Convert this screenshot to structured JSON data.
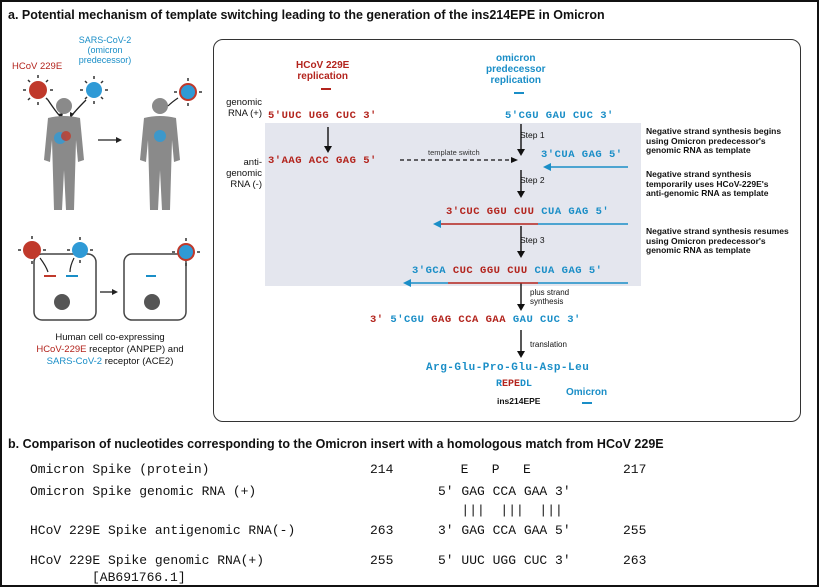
{
  "title_a": "a. Potential mechanism of template switching leading to the generation of the ins214EPE in Omicron",
  "title_b": "b. Comparison of nucleotides corresponding to the Omicron insert with a homologous match from HCoV 229E",
  "left": {
    "sars_label": "SARS-CoV-2\n(omicron\npredecessor)",
    "hcov_label": "HCoV 229E",
    "cell_caption_1": "Human cell co-expressing",
    "cell_caption_2a": "HCoV-229E",
    "cell_caption_2b": " receptor (ANPEP) and",
    "cell_caption_3a": "SARS-CoV-2",
    "cell_caption_3b": " receptor (ACE2)"
  },
  "panel": {
    "hcov_header": "HCoV 229E\nreplication",
    "omicron_header": "omicron\npredecessor\nreplication",
    "genomic_label": "genomic\nRNA (+)",
    "antigenomic_label": "anti-\ngenomic\nRNA (-)",
    "hcov_genomic": "5'UUC UGG CUC 3'",
    "hcov_anti": "3'AAG ACC GAG 5'",
    "omi_genomic": "5'CGU GAU CUC 3'",
    "step1": "Step 1",
    "step2": "Step 2",
    "step3": "Step 3",
    "template_switch": "template switch",
    "seq_step1": "3'CUA GAG 5'",
    "seq_step2_red": "3'CUC GGU CUU",
    "seq_step2_blue": " CUA GAG 5'",
    "seq_step3_blue1": "3'GCA",
    "seq_step3_red": " CUC GGU CUU",
    "seq_step3_blue2": " CUA GAG 5'",
    "plus_strand": "plus strand\nsynthesis",
    "final_prefix": "3'  ",
    "final_blue1": "5'CGU",
    "final_red": " GAG CCA GAA",
    "final_blue2": " GAU CUC 3'",
    "translation": "translation",
    "protein": "Arg-Glu-Pro-Glu-Asp-Leu",
    "repedl_r": "R",
    "repedl_epe": "EPE",
    "repedl_dl": "DL",
    "ins_label": "ins214EPE",
    "omicron_label": "Omicron",
    "note1": "Negative strand synthesis begins\nusing Omicron predecessor's\ngenomic RNA as template",
    "note2": "Negative strand synthesis\ntemporarily uses HCoV-229E's\nanti-genomic RNA as template",
    "note3": "Negative strand synthesis resumes\nusing Omicron predecessor's\ngenomic RNA as template"
  },
  "table_b": {
    "rows": [
      {
        "label": "Omicron Spike (protein)",
        "start": "214",
        "seq": "  E   P   E",
        "end": "217"
      },
      {
        "label": "Omicron Spike genomic RNA (+)",
        "start": "",
        "seq": "5' GAG CCA GAA 3'",
        "end": ""
      },
      {
        "label": "",
        "start": "",
        "seq": "   |||  |||  |||",
        "end": ""
      },
      {
        "label": "HCoV 229E Spike antigenomic RNA(-)",
        "start": "263",
        "seq": "3' GAG CCA GAA 5'",
        "end": "255"
      },
      {
        "label": "HCoV 229E Spike genomic RNA(+)",
        "start": "255",
        "seq": "5' UUC UGG CUC 3'",
        "end": "263"
      }
    ],
    "accession": "[AB691766.1]"
  },
  "colors": {
    "red": "#b3241d",
    "blue": "#1a8ec7",
    "shade": "#e4e6ee"
  }
}
